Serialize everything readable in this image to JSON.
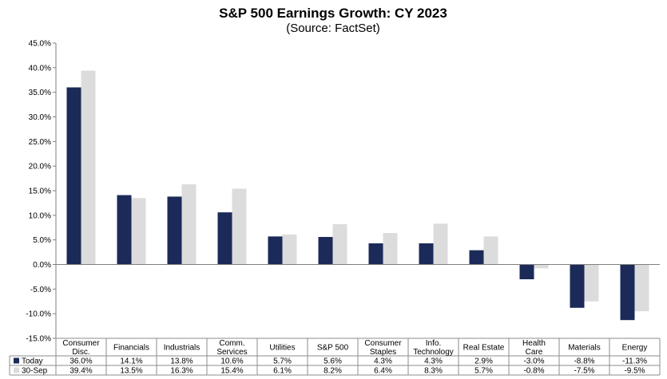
{
  "chart_data": {
    "type": "bar",
    "title": "S&P 500 Earnings Growth: CY 2023",
    "subtitle": "(Source: FactSet)",
    "categories": [
      [
        "Consumer",
        "Disc."
      ],
      [
        "Financials"
      ],
      [
        "Industrials"
      ],
      [
        "Comm.",
        "Services"
      ],
      [
        "Utilities"
      ],
      [
        "S&P 500"
      ],
      [
        "Consumer",
        "Staples"
      ],
      [
        "Info.",
        "Technology"
      ],
      [
        "Real Estate"
      ],
      [
        "Health",
        "Care"
      ],
      [
        "Materials"
      ],
      [
        "Energy"
      ]
    ],
    "series": [
      {
        "name": "Today",
        "color": "#1b2a58",
        "values": [
          36.0,
          14.1,
          13.8,
          10.6,
          5.7,
          5.6,
          4.3,
          4.3,
          2.9,
          -3.0,
          -8.8,
          -11.3
        ],
        "labels": [
          "36.0%",
          "14.1%",
          "13.8%",
          "10.6%",
          "5.7%",
          "5.6%",
          "4.3%",
          "4.3%",
          "2.9%",
          "-3.0%",
          "-8.8%",
          "-11.3%"
        ]
      },
      {
        "name": "30-Sep",
        "color": "#dcdcdc",
        "values": [
          39.4,
          13.5,
          16.3,
          15.4,
          6.1,
          8.2,
          6.4,
          8.3,
          5.7,
          -0.8,
          -7.5,
          -9.5
        ],
        "labels": [
          "39.4%",
          "13.5%",
          "16.3%",
          "15.4%",
          "6.1%",
          "8.2%",
          "6.4%",
          "8.3%",
          "5.7%",
          "-0.8%",
          "-7.5%",
          "-9.5%"
        ]
      }
    ],
    "ylim": [
      -15,
      45
    ],
    "yticks": [
      45,
      40,
      35,
      30,
      25,
      20,
      15,
      10,
      5,
      0,
      -5,
      -10,
      -15
    ],
    "ytick_labels": [
      "45.0%",
      "40.0%",
      "35.0%",
      "30.0%",
      "25.0%",
      "20.0%",
      "15.0%",
      "10.0%",
      "5.0%",
      "0.0%",
      "-5.0%",
      "-10.0%",
      "-15.0%"
    ],
    "grid": false,
    "legend": "data-table-left",
    "data_table": true
  }
}
